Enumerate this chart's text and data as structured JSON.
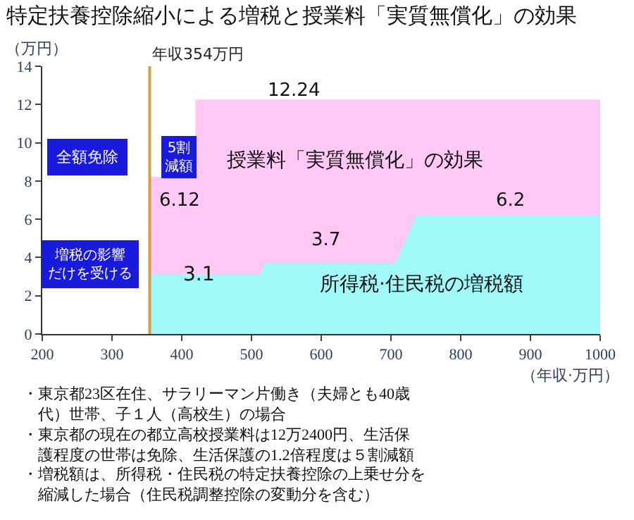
{
  "chart_data": {
    "type": "area",
    "title": "特定扶養控除縮小による増税と授業料「実質無償化」の効果",
    "ylabel": "（万円）",
    "xlabel": "（年収·万円）",
    "xlim": [
      200,
      1000
    ],
    "xticks": [
      200,
      300,
      400,
      500,
      600,
      700,
      800,
      900,
      1000
    ],
    "ylim": [
      0,
      14
    ],
    "yticks": [
      0,
      2,
      4,
      6,
      8,
      10,
      12,
      14
    ],
    "marker": "none",
    "series": [
      {
        "color": "#ffc8f5",
        "x": [
          354,
          420,
          420,
          1000
        ],
        "values": [
          8.2,
          8.2,
          12.24,
          12.24
        ]
      },
      {
        "color": "#a0f8f8",
        "x": [
          354,
          514,
          519,
          707,
          737,
          1000
        ],
        "values": [
          3.1,
          3.1,
          3.7,
          3.7,
          6.2,
          6.2
        ]
      }
    ],
    "ref_lines": [
      {
        "axis": "x",
        "value": 354,
        "label": "年収354万円",
        "color": "#d4a040"
      }
    ],
    "annotations": [
      {
        "text": "3.1",
        "x": 425,
        "y": 3.1
      },
      "12.24",
      "6.12",
      "3.7",
      "6.2",
      "授業料「実質無償化」の効果",
      "所得税·住民税の増税額",
      "全額免除",
      "5割減額",
      "増税の影響だけを受ける",
      "・東京都23区在住、サラリーマン片働き（夫婦とも40歳代）世帯、子１人（高校生）の場合",
      "・東京都の現在の都立高校授業料は12万2400円、生活保護程度の世帯は免除、生活保護の1.2倍程度は５割減額",
      "・増税額は、所得税・住民税の特定扶養控除の上乗せ分を縮減した場合（住民税調整控除の変動分を含む）"
    ]
  }
}
